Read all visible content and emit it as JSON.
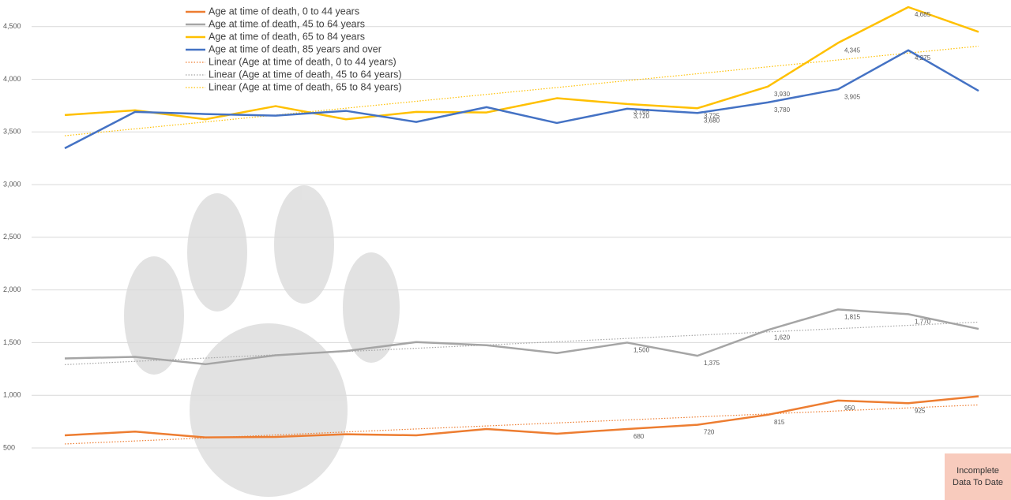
{
  "chart_data": {
    "type": "line",
    "categories": [
      null,
      null,
      null,
      null,
      null,
      null,
      null,
      null,
      null,
      null,
      null,
      null,
      null,
      null
    ],
    "series": [
      {
        "name": "Age at time of death, 0 to 44 years",
        "color": "#ed7d31",
        "values": [
          620,
          655,
          600,
          605,
          630,
          620,
          680,
          635,
          680,
          720,
          815,
          950,
          925,
          990
        ],
        "value_labels": [
          null,
          null,
          null,
          null,
          null,
          null,
          null,
          null,
          "680",
          "720",
          "815",
          "950",
          "925",
          null
        ]
      },
      {
        "name": "Age at time of death, 45 to 64 years",
        "color": "#a5a5a5",
        "values": [
          1350,
          1365,
          1295,
          1380,
          1420,
          1505,
          1475,
          1400,
          1500,
          1375,
          1620,
          1815,
          1770,
          1630
        ],
        "value_labels": [
          null,
          null,
          null,
          null,
          null,
          null,
          null,
          null,
          "1,500",
          "1,375",
          "1,620",
          "1,815",
          "1,770",
          null
        ]
      },
      {
        "name": "Age at time of death, 65 to 84 years",
        "color": "#ffc000",
        "values": [
          3660,
          3705,
          3620,
          3745,
          3620,
          3690,
          3685,
          3820,
          3765,
          3725,
          3930,
          4345,
          4685,
          4450
        ],
        "value_labels": [
          null,
          null,
          null,
          null,
          null,
          null,
          null,
          null,
          "3,765",
          "3,725",
          "3,930",
          "4,345",
          "4,685",
          null
        ]
      },
      {
        "name": "Age at time of death, 85 years and over",
        "color": "#4472c4",
        "values": [
          3345,
          3690,
          3670,
          3655,
          3700,
          3595,
          3735,
          3585,
          3720,
          3680,
          3780,
          3905,
          4275,
          3890
        ],
        "value_labels": [
          null,
          null,
          null,
          null,
          null,
          null,
          null,
          null,
          "3,720",
          "3,680",
          "3,780",
          "3,905",
          "4,275",
          null
        ]
      }
    ],
    "trendlines": [
      {
        "name": "Linear (Age at time of death, 0 to 44 years)",
        "series": 0
      },
      {
        "name": "Linear (Age at time of death, 45 to 64 years)",
        "series": 1
      },
      {
        "name": "Linear (Age at time of death, 65 to 84 years)",
        "series": 2
      }
    ],
    "ylim": [
      500,
      4700
    ],
    "yticks": [
      500,
      {
        "value": 1000,
        "label": "1,000"
      },
      {
        "value": 1500,
        "label": "1,500"
      },
      {
        "value": 2000,
        "label": "2,000"
      },
      {
        "value": 2500,
        "label": "2,500"
      },
      {
        "value": 3000,
        "label": "3,000"
      },
      {
        "value": 3500,
        "label": "3,500"
      },
      {
        "value": 4000,
        "label": "4,000"
      },
      {
        "value": 4500,
        "label": "4,500"
      }
    ],
    "grid": true,
    "annotation": "Incomplete Data To Date"
  }
}
